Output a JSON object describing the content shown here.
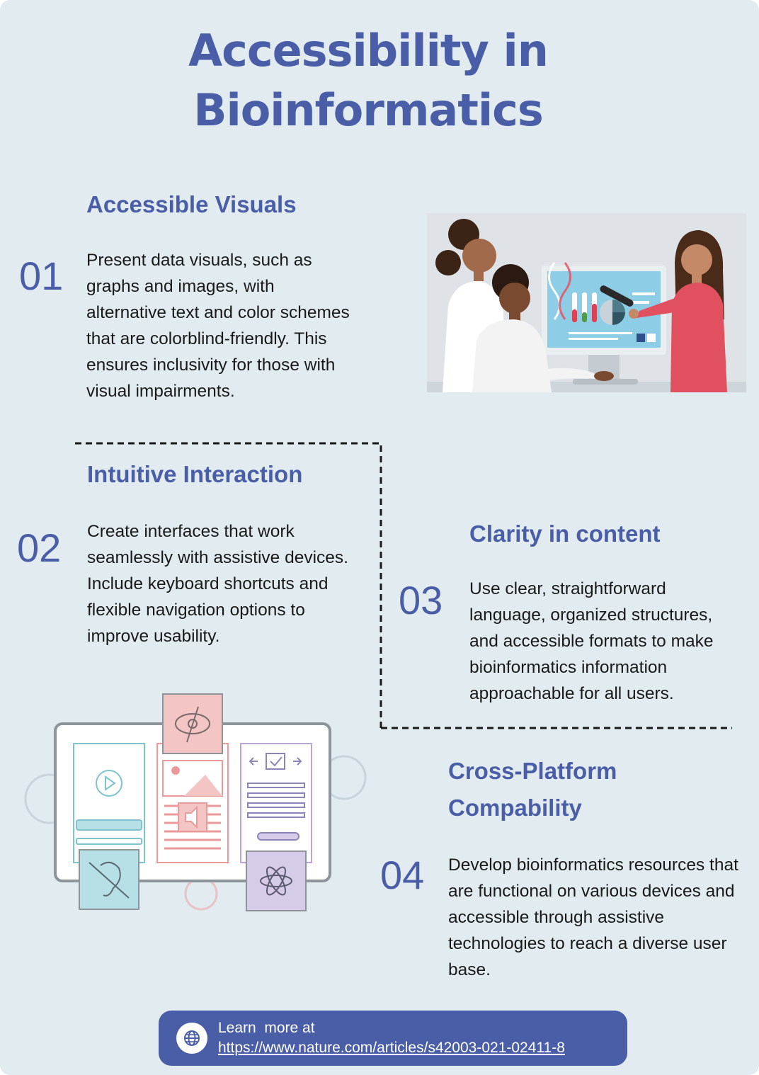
{
  "title": {
    "line1": "Accessibility in",
    "line2": "Bioinformatics"
  },
  "sections": [
    {
      "number": "01",
      "heading": "Accessible Visuals",
      "body": "Present data visuals, such as graphs and images, with alternative text and color schemes that are colorblind-friendly. This ensures inclusivity for those with visual impairments."
    },
    {
      "number": "02",
      "heading": "Intuitive Interaction",
      "body": "Create interfaces that work seamlessly with assistive devices. Include keyboard shortcuts and flexible navigation options to improve usability."
    },
    {
      "number": "03",
      "heading": "Clarity in content",
      "body": "Use clear, straightforward language, organized structures, and accessible formats to make bioinformatics information approachable for all users."
    },
    {
      "number": "04",
      "heading_line1": "Cross-Platform",
      "heading_line2": "Compability",
      "body": "Develop bioinformatics resources that are functional on various devices and accessible through assistive technologies to reach a diverse user base."
    }
  ],
  "footer": {
    "label": "Learn  more at",
    "link": "https://www.nature.com/articles/s42003-021-02411-8"
  },
  "icons": {
    "footer": "globe-icon",
    "illustration_1": "scientists-at-monitor-illustration",
    "illustration_2": "accessible-interface-illustration"
  },
  "colors": {
    "background": "#e1ebf0",
    "accent": "#4a5ea8",
    "text": "#1a1a1a",
    "footer_text": "#ffffff"
  }
}
